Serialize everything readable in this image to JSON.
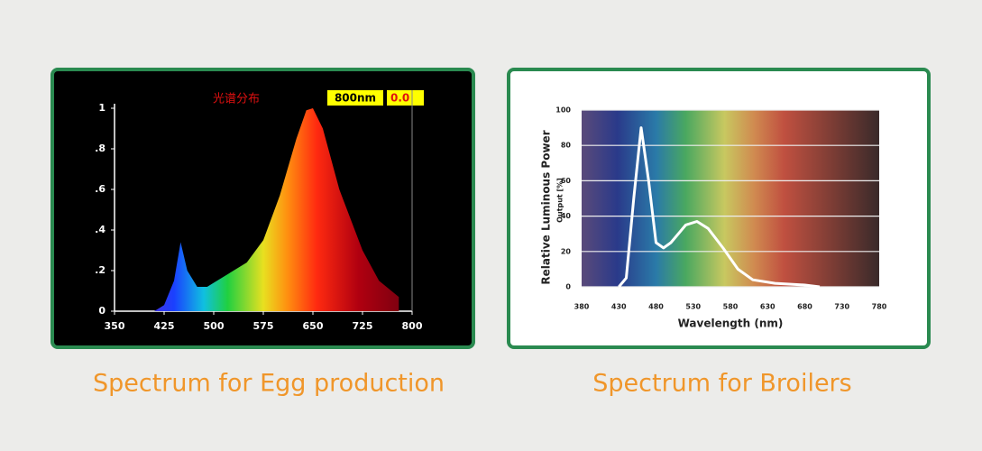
{
  "chart_data": [
    {
      "type": "area",
      "title": "光谱分布",
      "cursor_label": "800nm",
      "cursor_value": "0.0",
      "caption": "Spectrum for Egg production",
      "x": [
        410,
        425,
        440,
        450,
        460,
        475,
        490,
        500,
        525,
        550,
        575,
        600,
        625,
        640,
        650,
        665,
        690,
        725,
        750,
        780
      ],
      "values": [
        0,
        0.03,
        0.15,
        0.34,
        0.2,
        0.12,
        0.12,
        0.14,
        0.19,
        0.24,
        0.35,
        0.57,
        0.85,
        0.99,
        1,
        0.9,
        0.6,
        0.3,
        0.15,
        0.07
      ],
      "xlim": [
        350,
        800
      ],
      "ylim": [
        0,
        1
      ],
      "xticks": [
        350,
        425,
        500,
        575,
        650,
        725,
        800
      ],
      "yticks": [
        0,
        {
          "value": 0.2,
          "label": ".2"
        },
        {
          "value": 0.4,
          "label": ".4"
        },
        {
          "value": 0.6,
          "label": ".6"
        },
        {
          "value": 0.8,
          "label": ".8"
        },
        1
      ]
    },
    {
      "type": "line",
      "caption": "Spectrum for Broilers",
      "ylabel": "Relative Luminous Power",
      "ylabel_sub": "Output [%]",
      "xlabel": "Wavelength (nm)",
      "color": "#ffffff",
      "grid": true,
      "x": [
        430,
        440,
        450,
        460,
        470,
        480,
        490,
        500,
        520,
        535,
        550,
        570,
        590,
        610,
        640,
        680,
        700
      ],
      "values": [
        0,
        5,
        50,
        90,
        60,
        25,
        22,
        25,
        35,
        37,
        33,
        22,
        10,
        4,
        2,
        1,
        0
      ],
      "xlim": [
        380,
        780
      ],
      "ylim": [
        0,
        100
      ],
      "xticks": [
        380,
        430,
        480,
        530,
        580,
        630,
        680,
        730,
        780
      ],
      "yticks": [
        0,
        20,
        40,
        60,
        80,
        100
      ]
    }
  ]
}
